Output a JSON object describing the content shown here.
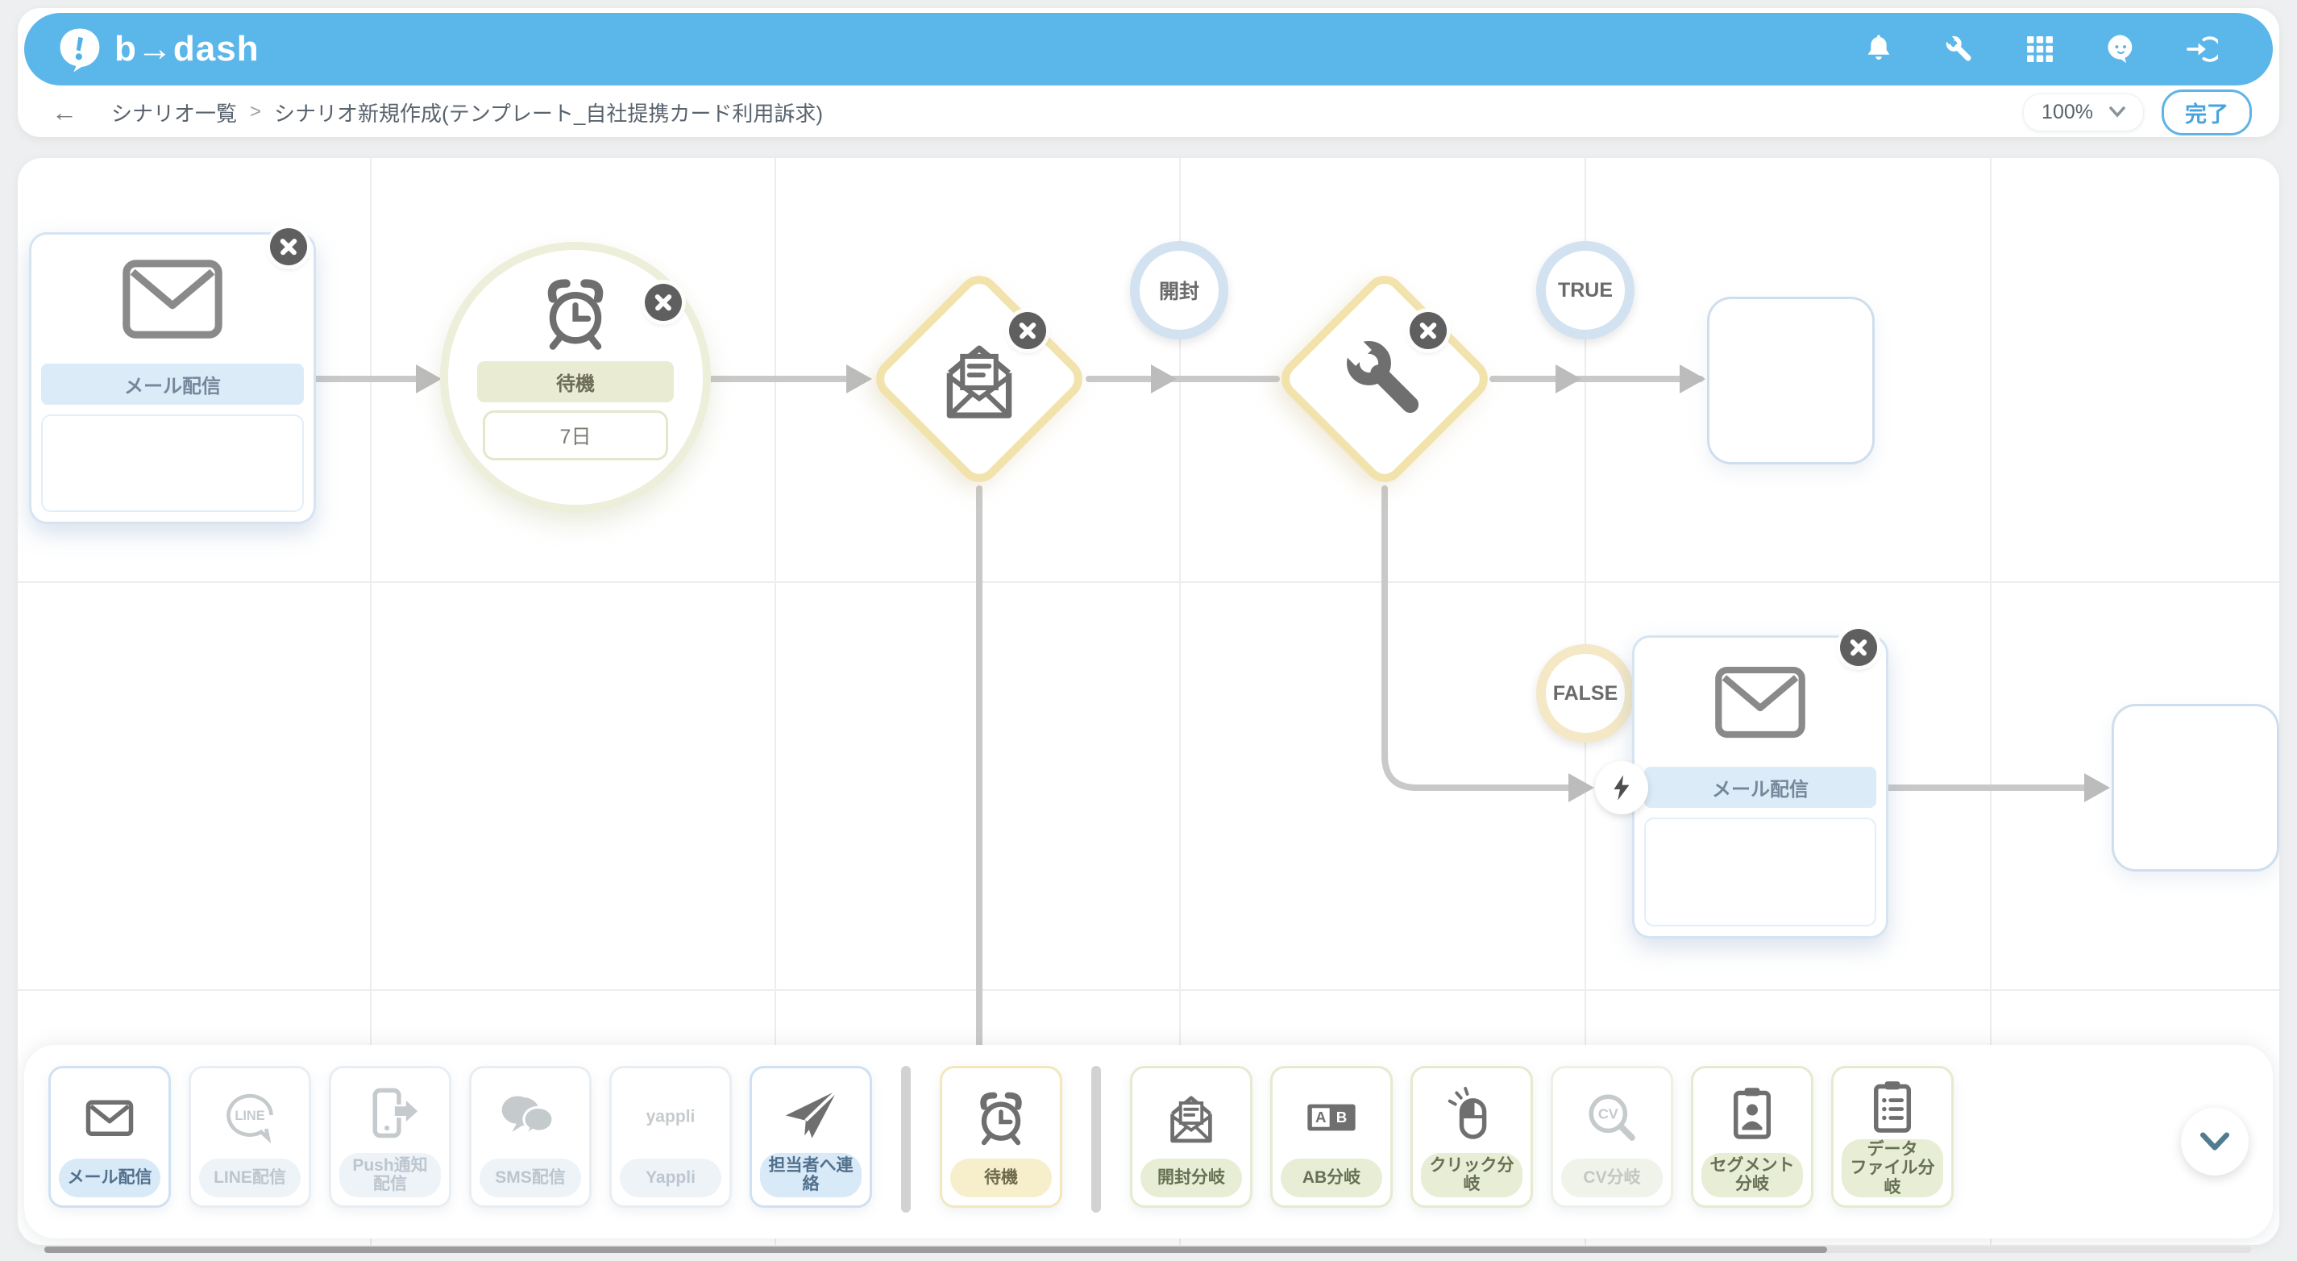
{
  "header": {
    "logo_text": "b→dash",
    "icons": [
      "bell-icon",
      "wrench-icon",
      "apps-grid-icon",
      "mascot-icon",
      "logout-icon"
    ]
  },
  "breadcrumb": {
    "back_icon": "←",
    "separator": ">",
    "items": [
      "シナリオ一覧",
      "シナリオ新規作成(テンプレート_自社提携カード利用訴求)"
    ]
  },
  "controls": {
    "zoom_value": "100%",
    "done_label": "完了"
  },
  "canvas": {
    "nodes": {
      "mail1": {
        "type": "メール配信",
        "label": "メール配信"
      },
      "wait": {
        "type": "待機",
        "label": "待機",
        "value": "7日"
      },
      "open_branch": {
        "type": "開封分岐"
      },
      "tool_branch": {
        "type": "分岐"
      },
      "mail2": {
        "type": "メール配信",
        "label": "メール配信"
      }
    },
    "pins": {
      "open_label": "開封",
      "true_label": "TRUE",
      "false_label": "FALSE"
    }
  },
  "palette": {
    "items": [
      {
        "id": "mail",
        "label": "メール配信",
        "icon": "envelope",
        "state": "enabled",
        "color": "blue"
      },
      {
        "id": "line",
        "label": "LINE配信",
        "icon": "line",
        "state": "disabled",
        "color": "blue"
      },
      {
        "id": "push",
        "label": "Push通知配信",
        "icon": "push-phone",
        "state": "disabled",
        "color": "blue"
      },
      {
        "id": "sms",
        "label": "SMS配信",
        "icon": "chat-bubbles",
        "state": "disabled",
        "color": "blue"
      },
      {
        "id": "yappli",
        "label": "Yappli",
        "icon": "yappli-logo",
        "state": "disabled",
        "color": "blue"
      },
      {
        "id": "contact",
        "label": "担当者へ連絡",
        "icon": "paper-plane",
        "state": "enabled",
        "color": "blue"
      },
      {
        "divider": true
      },
      {
        "id": "wait",
        "label": "待機",
        "icon": "alarm-clock",
        "state": "enabled",
        "color": "yellow"
      },
      {
        "divider": true
      },
      {
        "id": "open-branch",
        "label": "開封分岐",
        "icon": "open-envelope",
        "state": "enabled",
        "color": "green"
      },
      {
        "id": "ab-branch",
        "label": "AB分岐",
        "icon": "ab-test",
        "state": "enabled",
        "color": "green"
      },
      {
        "id": "click-branch",
        "label": "クリック分岐",
        "icon": "mouse-click",
        "state": "enabled",
        "color": "green"
      },
      {
        "id": "cv-branch",
        "label": "CV分岐",
        "icon": "cv-magnifier",
        "state": "disabled",
        "color": "green"
      },
      {
        "id": "segment-branch",
        "label": "セグメント\n分岐",
        "icon": "clipboard-person",
        "state": "enabled",
        "color": "green"
      },
      {
        "id": "datafile-branch",
        "label": "データ\nファイル分岐",
        "icon": "clipboard-list",
        "state": "enabled",
        "color": "green"
      }
    ]
  },
  "colors": {
    "header_blue": "#5bb7ea",
    "done_blue": "#45a3de",
    "node_blue_border": "#d6e4f2",
    "node_blue_band": "#dcebf8",
    "wait_border": "#edefda",
    "diamond_border": "#f2e2ab",
    "pin_blue": "#d2e2f0",
    "pin_cream": "#f4e8c6",
    "connector_grey": "#c9c9c9"
  }
}
